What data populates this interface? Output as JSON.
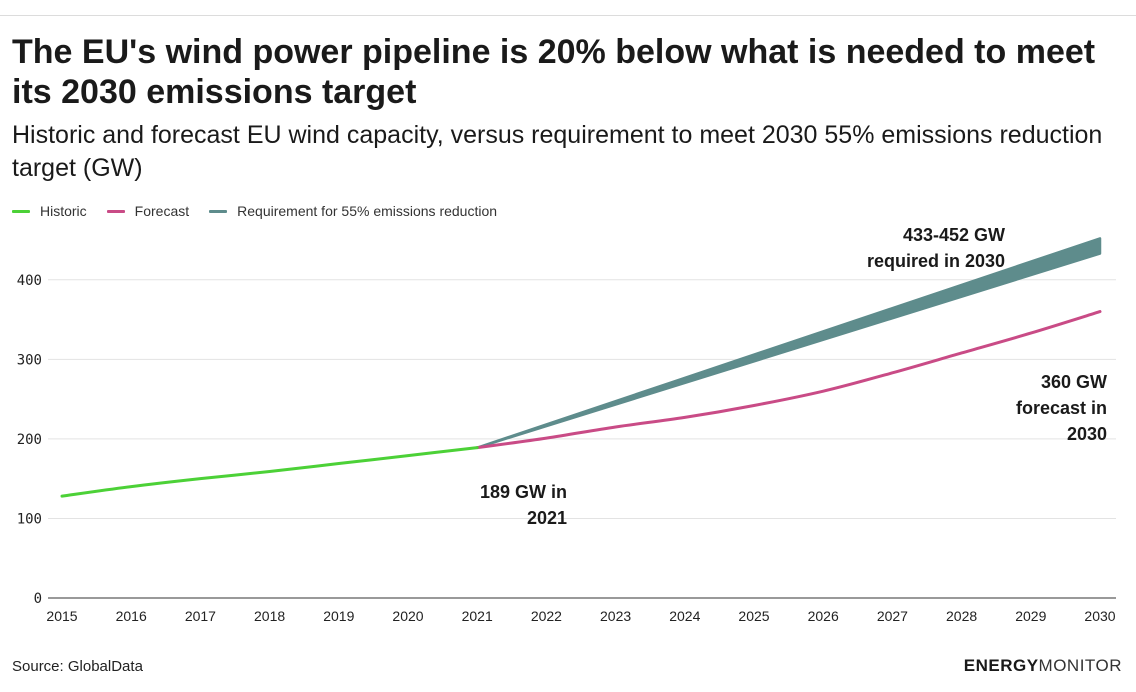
{
  "title": "The EU's wind power pipeline is 20% below what is needed to meet its 2030 emissions target",
  "subtitle": "Historic and forecast EU wind capacity, versus requirement to meet 2030 55% emissions reduction target (GW)",
  "source": "Source: GlobalData",
  "brand": {
    "part1": "ENERGY",
    "part2": "MONITOR"
  },
  "legend": [
    {
      "label": "Historic",
      "color": "#4cd137"
    },
    {
      "label": "Forecast",
      "color": "#c94b86"
    },
    {
      "label": "Requirement for 55% emissions reduction",
      "color": "#5e8c8c"
    }
  ],
  "chart_data": {
    "type": "line",
    "x": [
      2015,
      2016,
      2017,
      2018,
      2019,
      2020,
      2021,
      2022,
      2023,
      2024,
      2025,
      2026,
      2027,
      2028,
      2029,
      2030
    ],
    "xlim": [
      2015,
      2030
    ],
    "ylim": [
      0,
      450
    ],
    "yticks": [
      0,
      100,
      200,
      300,
      400
    ],
    "grid": true,
    "legend_position": "top-left",
    "series": [
      {
        "name": "Historic",
        "color": "#4cd137",
        "x": [
          2015,
          2016,
          2017,
          2018,
          2019,
          2020,
          2021
        ],
        "values": [
          128,
          140,
          150,
          159,
          169,
          179,
          189
        ]
      },
      {
        "name": "Forecast",
        "color": "#c94b86",
        "x": [
          2021,
          2022,
          2023,
          2024,
          2025,
          2026,
          2027,
          2028,
          2029,
          2030
        ],
        "values": [
          189,
          201,
          215,
          227,
          242,
          260,
          283,
          308,
          333,
          360
        ]
      },
      {
        "name": "Requirement for 55% emissions reduction",
        "color": "#5e8c8c",
        "type": "band",
        "x": [
          2021,
          2030
        ],
        "low": [
          189,
          433
        ],
        "high": [
          189,
          452
        ]
      }
    ],
    "annotations": [
      {
        "lines": [
          "189 GW in",
          "2021"
        ]
      },
      {
        "lines": [
          "433-452 GW",
          "required in 2030"
        ]
      },
      {
        "lines": [
          "360 GW",
          "forecast in",
          "2030"
        ]
      }
    ]
  }
}
